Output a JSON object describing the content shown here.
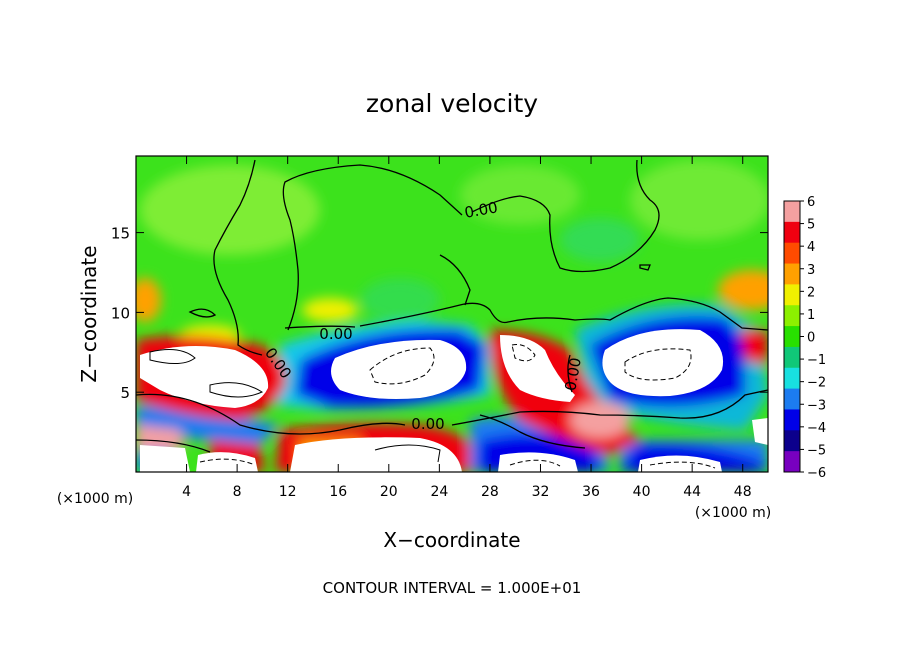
{
  "chart_data": {
    "type": "heatmap",
    "title": "zonal velocity",
    "xlabel": "X−coordinate",
    "ylabel": "Z−coordinate",
    "x_unit_left": "(×1000 m)",
    "x_unit_right": "(×1000 m)",
    "x_ticks": [
      4,
      8,
      12,
      16,
      20,
      24,
      28,
      32,
      36,
      40,
      44,
      48
    ],
    "y_ticks": [
      5,
      10,
      15
    ],
    "xlim": [
      0,
      50
    ],
    "ylim": [
      0,
      19.8
    ],
    "colorbar": {
      "ticks": [
        "6",
        "5",
        "4",
        "3",
        "2",
        "1",
        "0",
        "−1",
        "−2",
        "−3",
        "−4",
        "−5",
        "−6"
      ],
      "colors": [
        "#f4a0a0",
        "#f00010",
        "#ff4b00",
        "#ffa000",
        "#f0f000",
        "#8cf000",
        "#28e000",
        "#10c878",
        "#18e0e0",
        "#1c7cf0",
        "#0000e8",
        "#0c008c",
        "#7800c0"
      ]
    },
    "contour_labels": [
      "0.00",
      "0.00",
      "0.00",
      "0.00",
      "0.00"
    ],
    "footer": "CONTOUR INTERVAL = 1.000E+01"
  }
}
